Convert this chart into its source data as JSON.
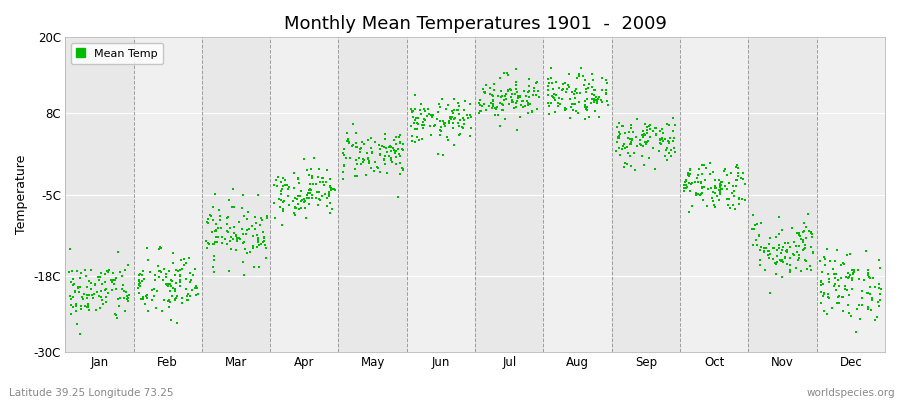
{
  "title": "Monthly Mean Temperatures 1901  -  2009",
  "ylabel": "Temperature",
  "subtitle": "Latitude 39.25 Longitude 73.25",
  "watermark": "worldspecies.org",
  "legend_label": "Mean Temp",
  "dot_color": "#00bb00",
  "background_color": "#ffffff",
  "plot_bg_light": "#f0f0f0",
  "plot_bg_dark": "#e8e8e8",
  "ylim": [
    -30,
    20
  ],
  "yticks": [
    -30,
    -18,
    -5,
    8,
    20
  ],
  "ytick_labels": [
    "-30C",
    "-18C",
    "-5C",
    "8C",
    "20C"
  ],
  "months": [
    "Jan",
    "Feb",
    "Mar",
    "Apr",
    "May",
    "Jun",
    "Jul",
    "Aug",
    "Sep",
    "Oct",
    "Nov",
    "Dec"
  ],
  "monthly_means": [
    -20.5,
    -19.5,
    -11.0,
    -4.5,
    1.5,
    6.5,
    10.5,
    10.5,
    3.5,
    -3.5,
    -13.5,
    -19.5
  ],
  "monthly_stds": [
    2.5,
    2.8,
    2.5,
    2.0,
    2.0,
    1.8,
    1.8,
    1.8,
    2.0,
    2.0,
    2.5,
    2.8
  ],
  "n_years": 109,
  "seed": 42
}
